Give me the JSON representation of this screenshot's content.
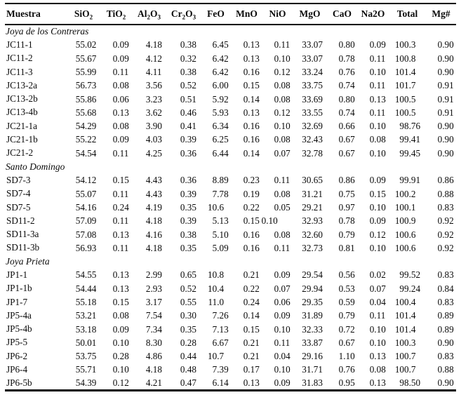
{
  "table": {
    "header": [
      {
        "name": "muestra",
        "parts": [
          {
            "t": "Muestra"
          }
        ]
      },
      {
        "name": "sio2",
        "parts": [
          {
            "t": "SiO"
          },
          {
            "t": "2",
            "sub": true
          }
        ]
      },
      {
        "name": "tio2",
        "parts": [
          {
            "t": "TiO"
          },
          {
            "t": "2",
            "sub": true
          }
        ]
      },
      {
        "name": "al2o3",
        "parts": [
          {
            "t": "Al"
          },
          {
            "t": "2",
            "sub": true
          },
          {
            "t": "O"
          },
          {
            "t": "3",
            "sub": true
          }
        ]
      },
      {
        "name": "cr2o3",
        "parts": [
          {
            "t": "Cr"
          },
          {
            "t": "2",
            "sub": true
          },
          {
            "t": "O"
          },
          {
            "t": "3",
            "sub": true
          }
        ]
      },
      {
        "name": "feo",
        "parts": [
          {
            "t": "FeO"
          }
        ]
      },
      {
        "name": "mno",
        "parts": [
          {
            "t": "MnO"
          }
        ]
      },
      {
        "name": "nio",
        "parts": [
          {
            "t": "NiO"
          }
        ]
      },
      {
        "name": "mgo",
        "parts": [
          {
            "t": "MgO"
          }
        ]
      },
      {
        "name": "cao",
        "parts": [
          {
            "t": "CaO"
          }
        ]
      },
      {
        "name": "na2o",
        "parts": [
          {
            "t": "Na2O"
          }
        ]
      },
      {
        "name": "total",
        "parts": [
          {
            "t": "Total"
          }
        ]
      },
      {
        "name": "mgnum",
        "parts": [
          {
            "t": "Mg#"
          }
        ]
      }
    ],
    "groups": [
      {
        "label": "Joya de los Contreras",
        "rows": [
          {
            "sample": "JC11-1",
            "values": [
              "55.02",
              "0.09",
              "4.18",
              "0.38",
              "6.45",
              "0.13",
              "0.11",
              "33.07",
              "0.80",
              "0.09",
              "100.3",
              "0.90"
            ]
          },
          {
            "sample": "JC11-2",
            "values": [
              "55.67",
              "0.09",
              "4.12",
              "0.32",
              "6.42",
              "0.13",
              "0.10",
              "33.07",
              "0.78",
              "0.11",
              "100.8",
              "0.90"
            ]
          },
          {
            "sample": "JC11-3",
            "values": [
              "55.99",
              "0.11",
              "4.11",
              "0.38",
              "6.42",
              "0.16",
              "0.12",
              "33.24",
              "0.76",
              "0.10",
              "101.4",
              "0.90"
            ]
          },
          {
            "sample": "JC13-2a",
            "values": [
              "56.73",
              "0.08",
              "3.56",
              "0.52",
              "6.00",
              "0.15",
              "0.08",
              "33.75",
              "0.74",
              "0.11",
              "101.7",
              "0.91"
            ]
          },
          {
            "sample": "JC13-2b",
            "values": [
              "55.86",
              "0.06",
              "3.23",
              "0.51",
              "5.92",
              "0.14",
              "0.08",
              "33.69",
              "0.80",
              "0.13",
              "100.5",
              "0.91"
            ]
          },
          {
            "sample": "JC13-4b",
            "values": [
              "55.68",
              "0.13",
              "3.62",
              "0.46",
              "5.93",
              "0.13",
              "0.12",
              "33.55",
              "0.74",
              "0.11",
              "100.5",
              "0.91"
            ]
          },
          {
            "sample": "JC21-1a",
            "values": [
              "54.29",
              "0.08",
              "3.90",
              "0.41",
              "6.34",
              "0.16",
              "0.10",
              "32.69",
              "0.66",
              "0.10",
              "98.76",
              "0.90"
            ]
          },
          {
            "sample": "JC21-1b",
            "values": [
              "55.22",
              "0.09",
              "4.03",
              "0.39",
              "6.25",
              "0.16",
              "0.08",
              "32.43",
              "0.67",
              "0.08",
              "99.41",
              "0.90"
            ]
          },
          {
            "sample": "JC21-2",
            "values": [
              "54.54",
              "0.11",
              "4.25",
              "0.36",
              "6.44",
              "0.14",
              "0.07",
              "32.78",
              "0.67",
              "0.10",
              "99.45",
              "0.90"
            ]
          }
        ]
      },
      {
        "label": "Santo Domingo",
        "rows": [
          {
            "sample": "SD7-3",
            "values": [
              "54.12",
              "0.15",
              "4.43",
              "0.36",
              "8.89",
              "0.23",
              "0.11",
              "30.65",
              "0.86",
              "0.09",
              "99.91",
              "0.86"
            ]
          },
          {
            "sample": "SD7-4",
            "values": [
              "55.07",
              "0.11",
              "4.43",
              "0.39",
              "7.78",
              "0.19",
              "0.08",
              "31.21",
              "0.75",
              "0.15",
              "100.2",
              "0.88"
            ]
          },
          {
            "sample": "SD7-5",
            "values": [
              "54.16",
              "0.24",
              "4.19",
              "0.35",
              "10.6",
              "0.22",
              "0.05",
              "29.21",
              "0.97",
              "0.10",
              "100.1",
              "0.83"
            ]
          },
          {
            "sample": "SD11-2",
            "values": [
              "57.09",
              "0.11",
              "4.18",
              "0.39",
              "5.13",
              "0.15",
              "0.10",
              "32.93",
              "0.78",
              "0.09",
              "100.9",
              "0.92"
            ]
          },
          {
            "sample": "SD11-3a",
            "values": [
              "57.08",
              "0.13",
              "4.16",
              "0.38",
              "5.10",
              "0.16",
              "0.08",
              "32.60",
              "0.79",
              "0.12",
              "100.6",
              "0.92"
            ]
          },
          {
            "sample": "SD11-3b",
            "values": [
              "56.93",
              "0.11",
              "4.18",
              "0.35",
              "5.09",
              "0.16",
              "0.11",
              "32.73",
              "0.81",
              "0.10",
              "100.6",
              "0.92"
            ]
          }
        ]
      },
      {
        "label": "Joya Prieta",
        "rows": [
          {
            "sample": "JP1-1",
            "values": [
              "54.55",
              "0.13",
              "2.99",
              "0.65",
              "10.8",
              "0.21",
              "0.09",
              "29.54",
              "0.56",
              "0.02",
              "99.52",
              "0.83"
            ]
          },
          {
            "sample": "JP1-1b",
            "values": [
              "54.44",
              "0.13",
              "2.93",
              "0.52",
              "10.4",
              "0.22",
              "0.07",
              "29.94",
              "0.53",
              "0.07",
              "99.24",
              "0.84"
            ]
          },
          {
            "sample": "JP1-7",
            "values": [
              "55.18",
              "0.15",
              "3.17",
              "0.55",
              "11.0",
              "0.24",
              "0.06",
              "29.35",
              "0.59",
              "0.04",
              "100.4",
              "0.83"
            ]
          },
          {
            "sample": "JP5-4a",
            "values": [
              "53.21",
              "0.08",
              "7.54",
              "0.30",
              "7.26",
              "0.14",
              "0.09",
              "31.89",
              "0.79",
              "0.11",
              "101.4",
              "0.89"
            ]
          },
          {
            "sample": "JP5-4b",
            "values": [
              "53.18",
              "0.09",
              "7.34",
              "0.35",
              "7.13",
              "0.15",
              "0.10",
              "32.33",
              "0.72",
              "0.10",
              "101.4",
              "0.89"
            ]
          },
          {
            "sample": "JP5-5",
            "values": [
              "50.01",
              "0.10",
              "8.30",
              "0.28",
              "6.67",
              "0.21",
              "0.11",
              "33.87",
              "0.67",
              "0.10",
              "100.3",
              "0.90"
            ]
          },
          {
            "sample": "JP6-2",
            "values": [
              "53.75",
              "0.28",
              "4.86",
              "0.44",
              "10.7",
              "0.21",
              "0.04",
              "29.16",
              "1.10",
              "0.13",
              "100.7",
              "0.83"
            ]
          },
          {
            "sample": "JP6-4",
            "values": [
              "55.71",
              "0.10",
              "4.18",
              "0.48",
              "7.39",
              "0.17",
              "0.10",
              "31.71",
              "0.76",
              "0.08",
              "100.7",
              "0.88"
            ]
          },
          {
            "sample": "JP6-5b",
            "values": [
              "54.39",
              "0.12",
              "4.21",
              "0.47",
              "6.14",
              "0.13",
              "0.09",
              "31.83",
              "0.95",
              "0.13",
              "98.50",
              "0.90"
            ]
          }
        ]
      }
    ],
    "quirks": [
      {
        "sample": "SD11-2",
        "column": "nio",
        "offset": "left"
      }
    ]
  }
}
